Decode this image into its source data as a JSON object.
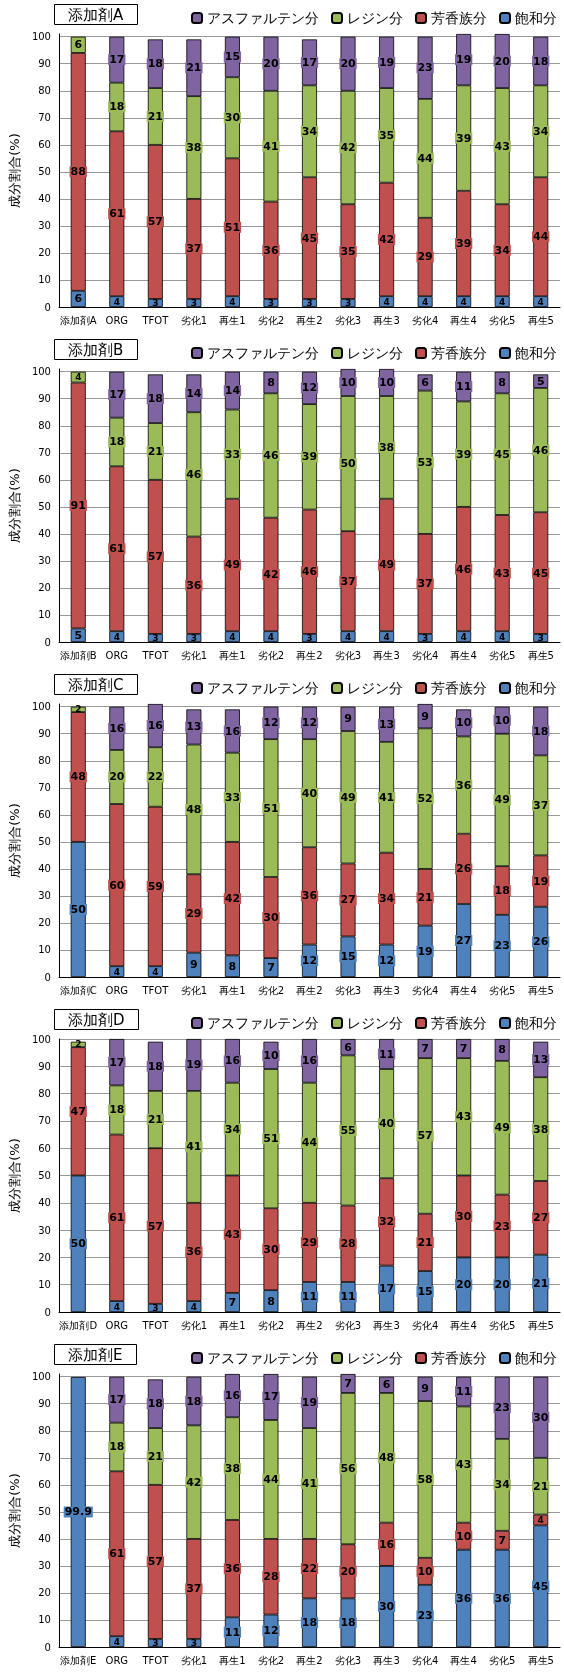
{
  "chart_data": [
    {
      "type": "bar",
      "title": "添加剤A",
      "ylabel": "成分割合(%)",
      "categories": [
        "添加剤A",
        "ORG",
        "TFOT",
        "劣化1",
        "再生1",
        "劣化2",
        "再生2",
        "劣化3",
        "再生3",
        "劣化4",
        "再生4",
        "劣化5",
        "再生5"
      ],
      "stacked": true,
      "data_labels": true,
      "grid": "y",
      "legend": "top right",
      "ylim": [
        0,
        101
      ],
      "yticks": [
        0,
        10,
        20,
        30,
        40,
        50,
        60,
        70,
        80,
        90,
        100
      ],
      "series": [
        {
          "name": "飽和分",
          "color": "#4f81bd",
          "values": [
            6,
            4,
            3,
            3,
            4,
            3,
            3,
            3,
            4,
            4,
            4,
            4,
            4
          ]
        },
        {
          "name": "芳香族分",
          "color": "#c0504d",
          "values": [
            88,
            61,
            57,
            37,
            51,
            36,
            45,
            35,
            42,
            29,
            39,
            34,
            44
          ]
        },
        {
          "name": "レジン分",
          "color": "#9bbb59",
          "values": [
            6,
            18,
            21,
            38,
            30,
            41,
            34,
            42,
            35,
            44,
            39,
            43,
            34
          ]
        },
        {
          "name": "アスファルテン分",
          "color": "#8064a2",
          "values": [
            null,
            17,
            18,
            21,
            15,
            20,
            17,
            20,
            19,
            23,
            19,
            20,
            18
          ]
        }
      ]
    },
    {
      "type": "bar",
      "title": "添加剤B",
      "ylabel": "成分割合(%)",
      "categories": [
        "添加剤B",
        "ORG",
        "TFOT",
        "劣化1",
        "再生1",
        "劣化2",
        "再生2",
        "劣化3",
        "再生3",
        "劣化4",
        "再生4",
        "劣化5",
        "再生5"
      ],
      "stacked": true,
      "data_labels": true,
      "grid": "y",
      "legend": "top right",
      "ylim": [
        0,
        101
      ],
      "yticks": [
        0,
        10,
        20,
        30,
        40,
        50,
        60,
        70,
        80,
        90,
        100
      ],
      "series": [
        {
          "name": "飽和分",
          "color": "#4f81bd",
          "values": [
            5,
            4,
            3,
            3,
            4,
            4,
            3,
            4,
            4,
            3,
            4,
            4,
            3
          ]
        },
        {
          "name": "芳香族分",
          "color": "#c0504d",
          "values": [
            91,
            61,
            57,
            36,
            49,
            42,
            46,
            37,
            49,
            37,
            46,
            43,
            45
          ]
        },
        {
          "name": "レジン分",
          "color": "#9bbb59",
          "values": [
            4,
            18,
            21,
            46,
            33,
            46,
            39,
            50,
            38,
            53,
            39,
            45,
            46
          ]
        },
        {
          "name": "アスファルテン分",
          "color": "#8064a2",
          "values": [
            null,
            17,
            18,
            14,
            14,
            8,
            12,
            10,
            10,
            6,
            11,
            8,
            5
          ]
        }
      ]
    },
    {
      "type": "bar",
      "title": "添加剤C",
      "ylabel": "成分割合(%)",
      "categories": [
        "添加剤C",
        "ORG",
        "TFOT",
        "劣化1",
        "再生1",
        "劣化2",
        "再生2",
        "劣化3",
        "再生3",
        "劣化4",
        "再生4",
        "劣化5",
        "再生5"
      ],
      "stacked": true,
      "data_labels": true,
      "grid": "y",
      "legend": "top right",
      "ylim": [
        0,
        101
      ],
      "yticks": [
        0,
        10,
        20,
        30,
        40,
        50,
        60,
        70,
        80,
        90,
        100
      ],
      "series": [
        {
          "name": "飽和分",
          "color": "#4f81bd",
          "values": [
            50,
            4,
            4,
            9,
            8,
            7,
            12,
            15,
            12,
            19,
            27,
            23,
            26
          ]
        },
        {
          "name": "芳香族分",
          "color": "#c0504d",
          "values": [
            48,
            60,
            59,
            29,
            42,
            30,
            36,
            27,
            34,
            21,
            26,
            18,
            19
          ]
        },
        {
          "name": "レジン分",
          "color": "#9bbb59",
          "values": [
            2,
            20,
            22,
            48,
            33,
            51,
            40,
            49,
            41,
            52,
            36,
            49,
            37
          ]
        },
        {
          "name": "アスファルテン分",
          "color": "#8064a2",
          "values": [
            null,
            16,
            16,
            13,
            16,
            12,
            12,
            9,
            13,
            9,
            10,
            10,
            18
          ]
        }
      ]
    },
    {
      "type": "bar",
      "title": "添加剤D",
      "ylabel": "成分割合(%)",
      "categories": [
        "添加剤D",
        "ORG",
        "TFOT",
        "劣化1",
        "再生1",
        "劣化2",
        "再生2",
        "劣化3",
        "再生3",
        "劣化4",
        "再生4",
        "劣化5",
        "再生5"
      ],
      "stacked": true,
      "data_labels": true,
      "grid": "y",
      "legend": "top right",
      "ylim": [
        0,
        100
      ],
      "yticks": [
        0,
        10,
        20,
        30,
        40,
        50,
        60,
        70,
        80,
        90,
        100
      ],
      "series": [
        {
          "name": "飽和分",
          "color": "#4f81bd",
          "values": [
            50,
            4,
            3,
            4,
            7,
            8,
            11,
            11,
            17,
            15,
            20,
            20,
            21
          ]
        },
        {
          "name": "芳香族分",
          "color": "#c0504d",
          "values": [
            47,
            61,
            57,
            36,
            43,
            30,
            29,
            28,
            32,
            21,
            30,
            23,
            27
          ]
        },
        {
          "name": "レジン分",
          "color": "#9bbb59",
          "values": [
            2,
            18,
            21,
            41,
            34,
            51,
            44,
            55,
            40,
            57,
            43,
            49,
            38
          ]
        },
        {
          "name": "アスファルテン分",
          "color": "#8064a2",
          "values": [
            null,
            17,
            18,
            19,
            16,
            10,
            16,
            6,
            11,
            7,
            7,
            8,
            13
          ]
        }
      ]
    },
    {
      "type": "bar",
      "title": "添加剤E",
      "ylabel": "成分割合(%)",
      "categories": [
        "添加剤E",
        "ORG",
        "TFOT",
        "劣化1",
        "再生1",
        "劣化2",
        "再生2",
        "劣化3",
        "再生3",
        "劣化4",
        "再生4",
        "劣化5",
        "再生5"
      ],
      "stacked": true,
      "data_labels": true,
      "grid": "y",
      "legend": "top right",
      "ylim": [
        0,
        101
      ],
      "yticks": [
        0,
        10,
        20,
        30,
        40,
        50,
        60,
        70,
        80,
        90,
        100
      ],
      "series": [
        {
          "name": "飽和分",
          "color": "#4f81bd",
          "values": [
            99.9,
            4,
            3,
            3,
            11,
            12,
            18,
            18,
            30,
            23,
            36,
            36,
            45
          ]
        },
        {
          "name": "芳香族分",
          "color": "#c0504d",
          "values": [
            null,
            61,
            57,
            37,
            36,
            28,
            22,
            20,
            16,
            10,
            10,
            7,
            4
          ]
        },
        {
          "name": "レジン分",
          "color": "#9bbb59",
          "values": [
            null,
            18,
            21,
            42,
            38,
            44,
            41,
            56,
            48,
            58,
            43,
            34,
            21
          ]
        },
        {
          "name": "アスファルテン分",
          "color": "#8064a2",
          "values": [
            null,
            17,
            18,
            18,
            16,
            17,
            19,
            7,
            6,
            9,
            11,
            23,
            30
          ]
        }
      ]
    }
  ]
}
